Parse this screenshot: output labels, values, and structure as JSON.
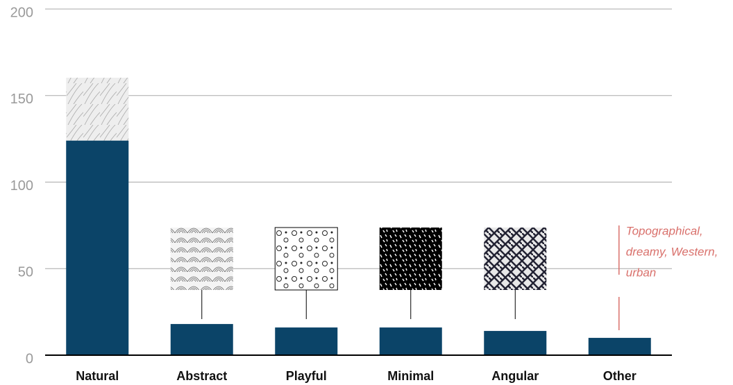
{
  "chart_data": {
    "type": "bar",
    "categories": [
      "Natural",
      "Abstract",
      "Playful",
      "Minimal",
      "Angular",
      "Other"
    ],
    "values": [
      124,
      18,
      16,
      16,
      14,
      10
    ],
    "color": "#0b4468",
    "ylim": [
      0,
      200
    ],
    "yticks": [
      0,
      50,
      100,
      150,
      200
    ],
    "grid": true,
    "annotation": [
      "Topographical,",
      "dreamy, Western,",
      "urban"
    ],
    "annotation_color": "#d9706b"
  }
}
